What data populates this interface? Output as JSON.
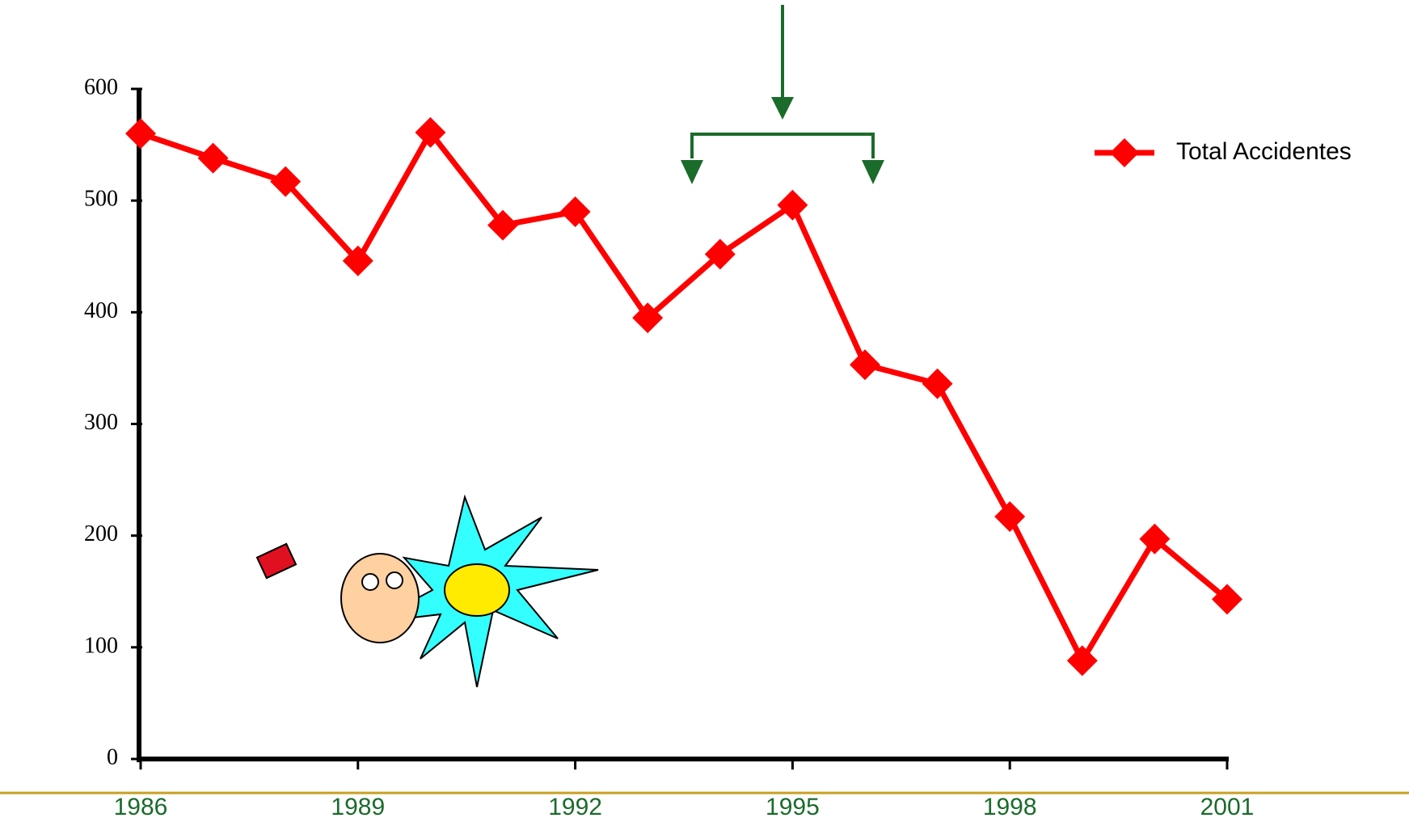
{
  "chart_data": {
    "type": "line",
    "x": [
      1986,
      1987,
      1988,
      1989,
      1990,
      1991,
      1992,
      1993,
      1994,
      1995,
      1996,
      1997,
      1998,
      1999,
      2000,
      2001
    ],
    "series": [
      {
        "name": "Total Accidentes",
        "color": "#ff0000",
        "values": [
          560,
          538,
          517,
          446,
          561,
          478,
          490,
          395,
          452,
          496,
          353,
          336,
          217,
          88,
          197,
          143
        ]
      }
    ],
    "xlim": [
      1986,
      2001
    ],
    "xticks": [
      1986,
      1989,
      1992,
      1995,
      1998,
      2001
    ],
    "ylim": [
      0,
      600
    ],
    "yticks": [
      0,
      100,
      200,
      300,
      400,
      500,
      600
    ],
    "legend": "top-right"
  }
}
